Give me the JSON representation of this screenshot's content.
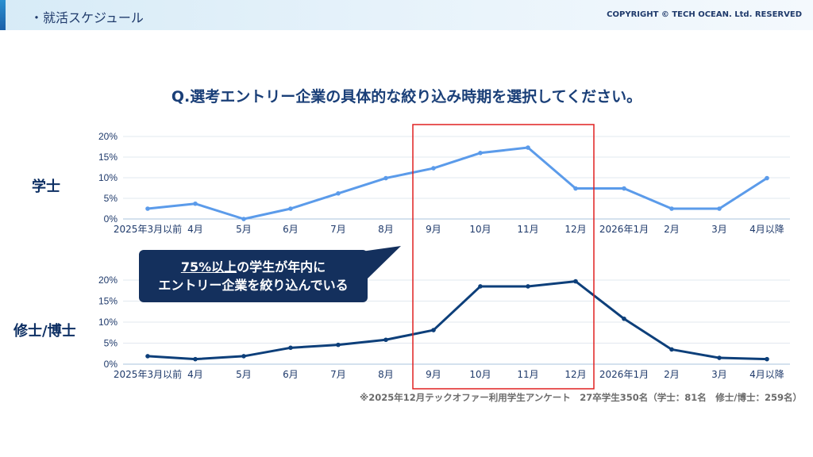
{
  "header": {
    "title": "・就活スケジュール",
    "copyright": "COPYRIGHT © TECH OCEAN. Ltd. RESERVED"
  },
  "question": "Q.選考エントリー企業の具体的な絞り込み時期を選択してください。",
  "callout": {
    "line1_underlined": "75%以上",
    "line1_rest": "の学生が年内に",
    "line2": "エントリー企業を絞り込んでいる"
  },
  "footnote": "※2025年12月テックオファー利用学生アンケート　27卒学生350名（学士：81名　修士/博士：259名）",
  "colors": {
    "bachelor_line": "#5b9bea",
    "master_line": "#0d3f7a",
    "highlight_box": "#e02020",
    "callout_bg": "#14305d"
  },
  "chart_data": [
    {
      "type": "line",
      "name": "学士",
      "categories": [
        "2025年3月以前",
        "4月",
        "5月",
        "6月",
        "7月",
        "8月",
        "9月",
        "10月",
        "11月",
        "12月",
        "2026年1月",
        "2月",
        "3月",
        "4月以降"
      ],
      "values": [
        2.5,
        3.7,
        0,
        2.5,
        6.2,
        9.9,
        12.3,
        16.0,
        17.3,
        7.4,
        7.4,
        2.5,
        2.5,
        9.9
      ],
      "yticks": [
        "0%",
        "5%",
        "10%",
        "15%",
        "20%"
      ],
      "ylim": [
        0,
        20
      ],
      "grid": true
    },
    {
      "type": "line",
      "name": "修士/博士",
      "categories": [
        "2025年3月以前",
        "4月",
        "5月",
        "6月",
        "7月",
        "8月",
        "9月",
        "10月",
        "11月",
        "12月",
        "2026年1月",
        "2月",
        "3月",
        "4月以降"
      ],
      "values": [
        1.9,
        1.2,
        1.9,
        3.9,
        4.6,
        5.8,
        8.1,
        18.5,
        18.5,
        19.7,
        10.8,
        3.5,
        1.5,
        1.2
      ],
      "yticks": [
        "0%",
        "5%",
        "10%",
        "15%",
        "20%"
      ],
      "ylim": [
        0,
        20
      ],
      "grid": true
    }
  ]
}
